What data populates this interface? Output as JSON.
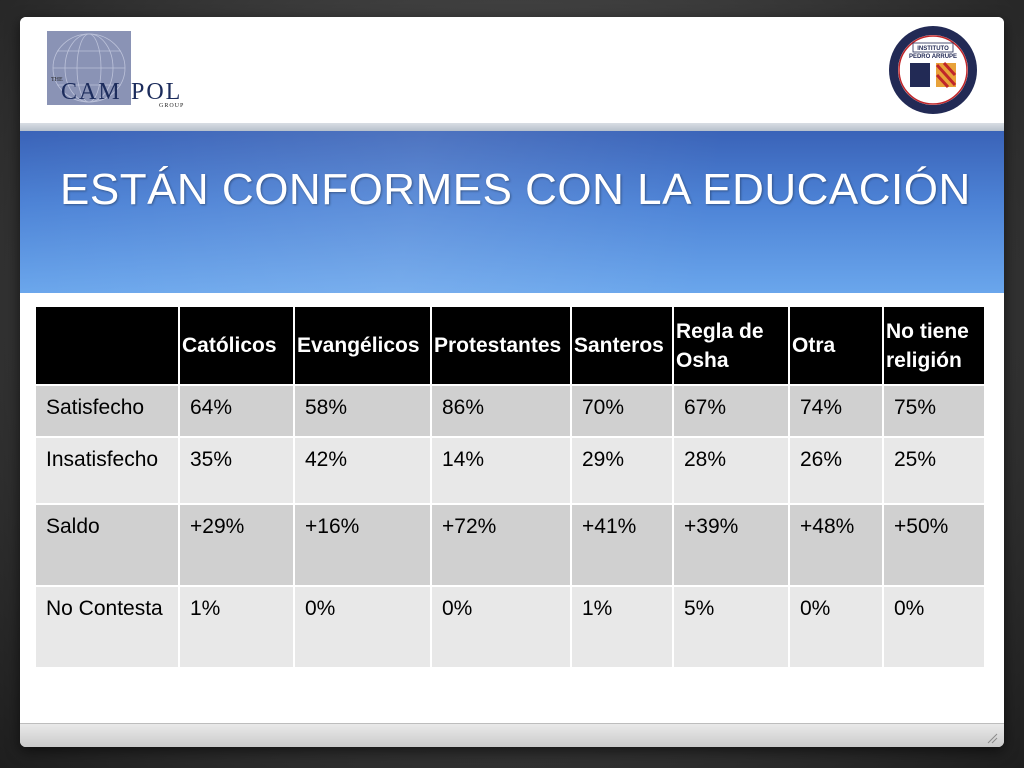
{
  "slide": {
    "title": "ESTÁN CONFORMES CON LA EDUCACIÓN"
  },
  "logos": {
    "left": {
      "name": "campol-group-logo",
      "text_main": "CAMPOL",
      "text_prefix": "THE",
      "text_sub": "GROUP"
    },
    "right": {
      "name": "instituto-pedro-arrupe-seal",
      "text_main": "INSTITUTO PEDRO ARRUPE"
    }
  },
  "colors": {
    "banner_top": "#3a63b8",
    "banner_bottom": "#6aa6ec",
    "header_bg": "#000000",
    "row_dark": "#d0d0d0",
    "row_light": "#e8e8e8"
  },
  "table": {
    "columns": [
      "",
      "Católicos",
      "Evangélicos",
      "Protestantes",
      "Santeros",
      "Regla de Osha",
      "Otra",
      "No tiene religión"
    ],
    "rows": [
      {
        "label": "Satisfecho",
        "values": [
          "64%",
          "58%",
          "86%",
          "70%",
          "67%",
          "74%",
          "75%"
        ]
      },
      {
        "label": "Insatisfecho",
        "values": [
          "35%",
          "42%",
          "14%",
          "29%",
          "28%",
          "26%",
          "25%"
        ]
      },
      {
        "label": "Saldo",
        "values": [
          "+29%",
          "+16%",
          "+72%",
          "+41%",
          "+39%",
          "+48%",
          "+50%"
        ]
      },
      {
        "label": "No Contesta",
        "values": [
          "1%",
          "0%",
          "0%",
          "1%",
          "5%",
          "0%",
          "0%"
        ]
      }
    ]
  }
}
